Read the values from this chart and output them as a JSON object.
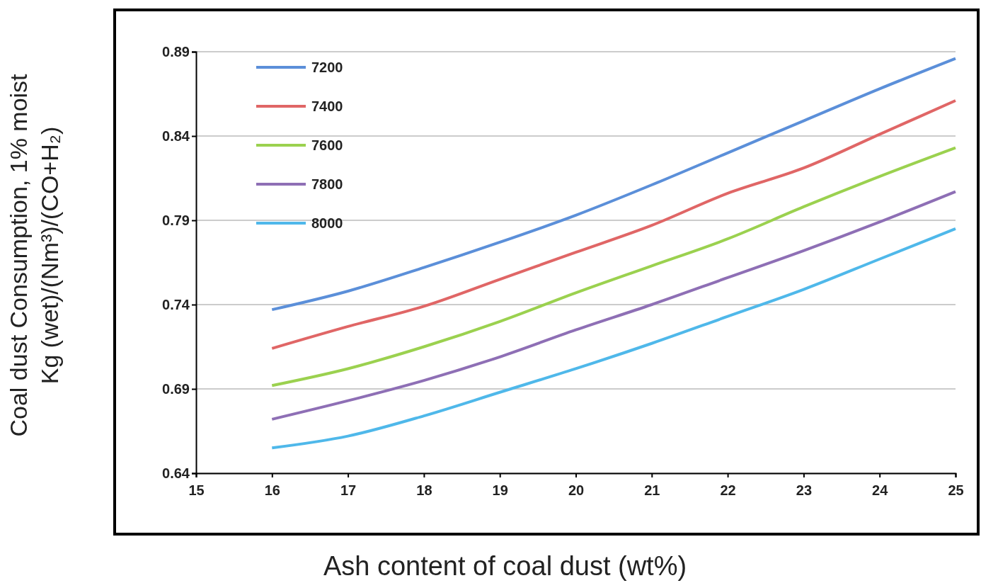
{
  "chart_data": {
    "type": "line",
    "xlabel": "Ash content of coal dust (wt%)",
    "ylabel": "Coal dust Consumption, 1% moist\nKg (wet)/(Nm³)/(CO+H₂)",
    "x": [
      16,
      17,
      18,
      19,
      20,
      21,
      22,
      23,
      24,
      25
    ],
    "xlim": [
      15,
      25
    ],
    "xticks": [
      15,
      16,
      17,
      18,
      19,
      20,
      21,
      22,
      23,
      24,
      25
    ],
    "ylim": [
      0.64,
      0.89
    ],
    "yticks": [
      0.64,
      0.69,
      0.74,
      0.79,
      0.84,
      0.89
    ],
    "grid": "y",
    "legend": "top left",
    "marker": "none",
    "line_style": "solid",
    "series": [
      {
        "name": "7200",
        "color": "#5b8fd9",
        "values": [
          0.737,
          0.748,
          0.762,
          0.777,
          0.793,
          0.811,
          0.83,
          0.849,
          0.868,
          0.886
        ]
      },
      {
        "name": "7400",
        "color": "#e06666",
        "values": [
          0.714,
          0.727,
          0.739,
          0.755,
          0.771,
          0.787,
          0.806,
          0.821,
          0.841,
          0.861
        ]
      },
      {
        "name": "7600",
        "color": "#9bd14f",
        "values": [
          0.692,
          0.702,
          0.715,
          0.73,
          0.747,
          0.763,
          0.779,
          0.798,
          0.816,
          0.833
        ]
      },
      {
        "name": "7800",
        "color": "#8e6fb5",
        "values": [
          0.672,
          0.683,
          0.695,
          0.709,
          0.725,
          0.74,
          0.756,
          0.772,
          0.789,
          0.807
        ]
      },
      {
        "name": "8000",
        "color": "#4fb8ea",
        "values": [
          0.655,
          0.662,
          0.674,
          0.688,
          0.702,
          0.717,
          0.733,
          0.749,
          0.767,
          0.785
        ]
      }
    ]
  }
}
